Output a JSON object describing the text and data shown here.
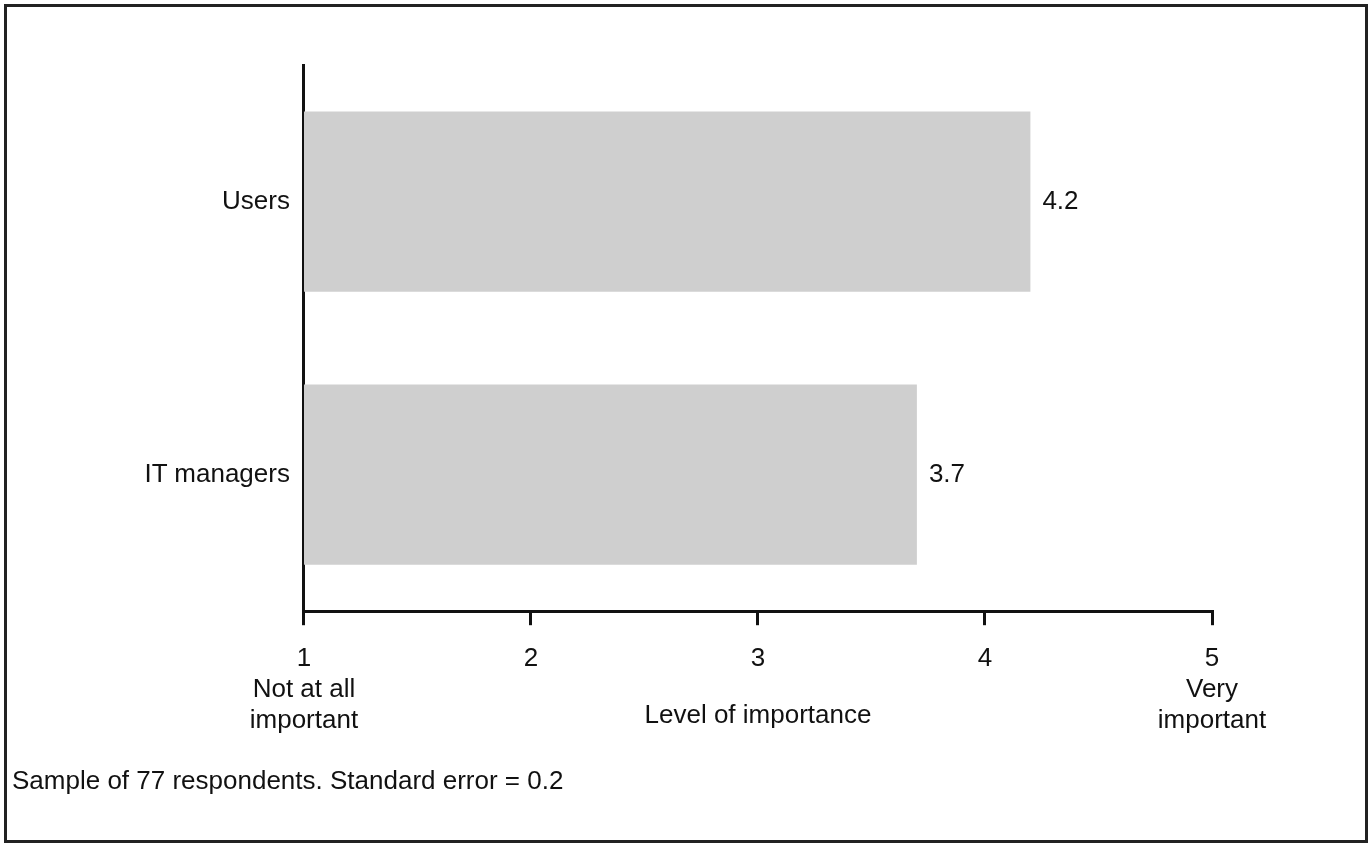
{
  "chart_data": {
    "type": "bar",
    "orientation": "horizontal",
    "categories": [
      "Users",
      "IT managers"
    ],
    "values": [
      4.2,
      3.7
    ],
    "color": "#cfcfcf",
    "data_labels": true,
    "grid": false,
    "legend": false,
    "xlabel": "Level of importance",
    "xlim": [
      1,
      5
    ],
    "xticks": [
      {
        "value": 1,
        "label": "1\nNot at all\nimportant"
      },
      2,
      3,
      4,
      {
        "value": 5,
        "label": "5\nVery\nimportant"
      }
    ],
    "annotations": [
      "Sample of 77 respondents. Standard error = 0.2"
    ]
  }
}
